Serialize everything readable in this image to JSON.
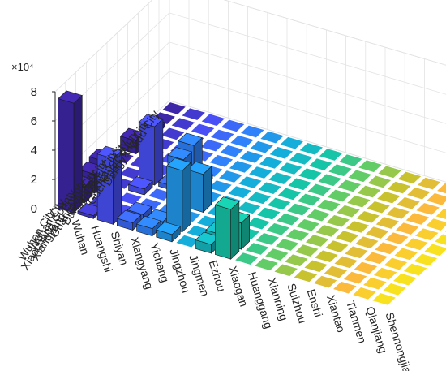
{
  "chart_data": {
    "type": "bar3d",
    "title": "",
    "xlabel": "",
    "ylabel": "",
    "zlabel": "",
    "z_exponent_label": "×10⁴",
    "z_multiplier": 10000,
    "zlim": [
      0,
      8
    ],
    "z_ticks": [
      "0",
      "2",
      "4",
      "6",
      "8"
    ],
    "grid": true,
    "colormap": [
      "#3e26a8",
      "#4850f5",
      "#2f82fa",
      "#15aedb",
      "#16c5a8",
      "#62cd67",
      "#c8c22f",
      "#fcba3d",
      "#f8e21f"
    ],
    "x_categories": [
      "Wuhan",
      "Huangshi",
      "Shiyan",
      "Xiangyang",
      "Yichang",
      "Jingzhou",
      "Jingmen",
      "Ezhou",
      "Xiaogan",
      "Huanggang",
      "Xianning",
      "Suizhou",
      "Enshi",
      "Xiantao",
      "Tianmen",
      "Qianjiang",
      "Shennongjia"
    ],
    "y_categories": [
      "Wuhan City",
      "Wuhan City",
      "Xiaochang County",
      "Xiangyang County",
      "Guangshui City",
      "Dangyang City",
      "Suizhou City",
      "Zaoyang City",
      "Gucheng County",
      "Dangyang City",
      "Yidu City"
    ],
    "bars": [
      {
        "x": "Wuhan",
        "y_index": 0,
        "value": 7.5
      },
      {
        "x": "Wuhan",
        "y_index": 1,
        "value": 1.1
      },
      {
        "x": "Wuhan",
        "y_index": 2,
        "value": 1.3
      },
      {
        "x": "Wuhan",
        "y_index": 3,
        "value": 1.5
      },
      {
        "x": "Wuhan",
        "y_index": 6,
        "value": 0.9
      },
      {
        "x": "Wuhan",
        "y_index": 8,
        "value": 0.25
      },
      {
        "x": "Huangshi",
        "y_index": 0,
        "value": 0.2
      },
      {
        "x": "Shiyan",
        "y_index": 0,
        "value": 4.5
      },
      {
        "x": "Shiyan",
        "y_index": 3,
        "value": 0.4
      },
      {
        "x": "Shiyan",
        "y_index": 4,
        "value": 4.0
      },
      {
        "x": "Xiangyang",
        "y_index": 0,
        "value": 0.5
      },
      {
        "x": "Xiangyang",
        "y_index": 1,
        "value": 0.4
      },
      {
        "x": "Xiangyang",
        "y_index": 4,
        "value": 0.3
      },
      {
        "x": "Yichang",
        "y_index": 0,
        "value": 0.5
      },
      {
        "x": "Yichang",
        "y_index": 1,
        "value": 0.3
      },
      {
        "x": "Yichang",
        "y_index": 3,
        "value": 3.2
      },
      {
        "x": "Yichang",
        "y_index": 4,
        "value": 3.5
      },
      {
        "x": "Yichang",
        "y_index": 5,
        "value": 0.3
      },
      {
        "x": "Jingzhou",
        "y_index": 0,
        "value": 0.5
      },
      {
        "x": "Jingzhou",
        "y_index": 1,
        "value": 4.2
      },
      {
        "x": "Jingzhou",
        "y_index": 3,
        "value": 2.6
      },
      {
        "x": "Ezhou",
        "y_index": 0,
        "value": 0.6
      },
      {
        "x": "Ezhou",
        "y_index": 1,
        "value": 0.6
      },
      {
        "x": "Xiaogan",
        "y_index": 0,
        "value": 3.4
      },
      {
        "x": "Xiaogan",
        "y_index": 1,
        "value": 1.8
      }
    ]
  }
}
